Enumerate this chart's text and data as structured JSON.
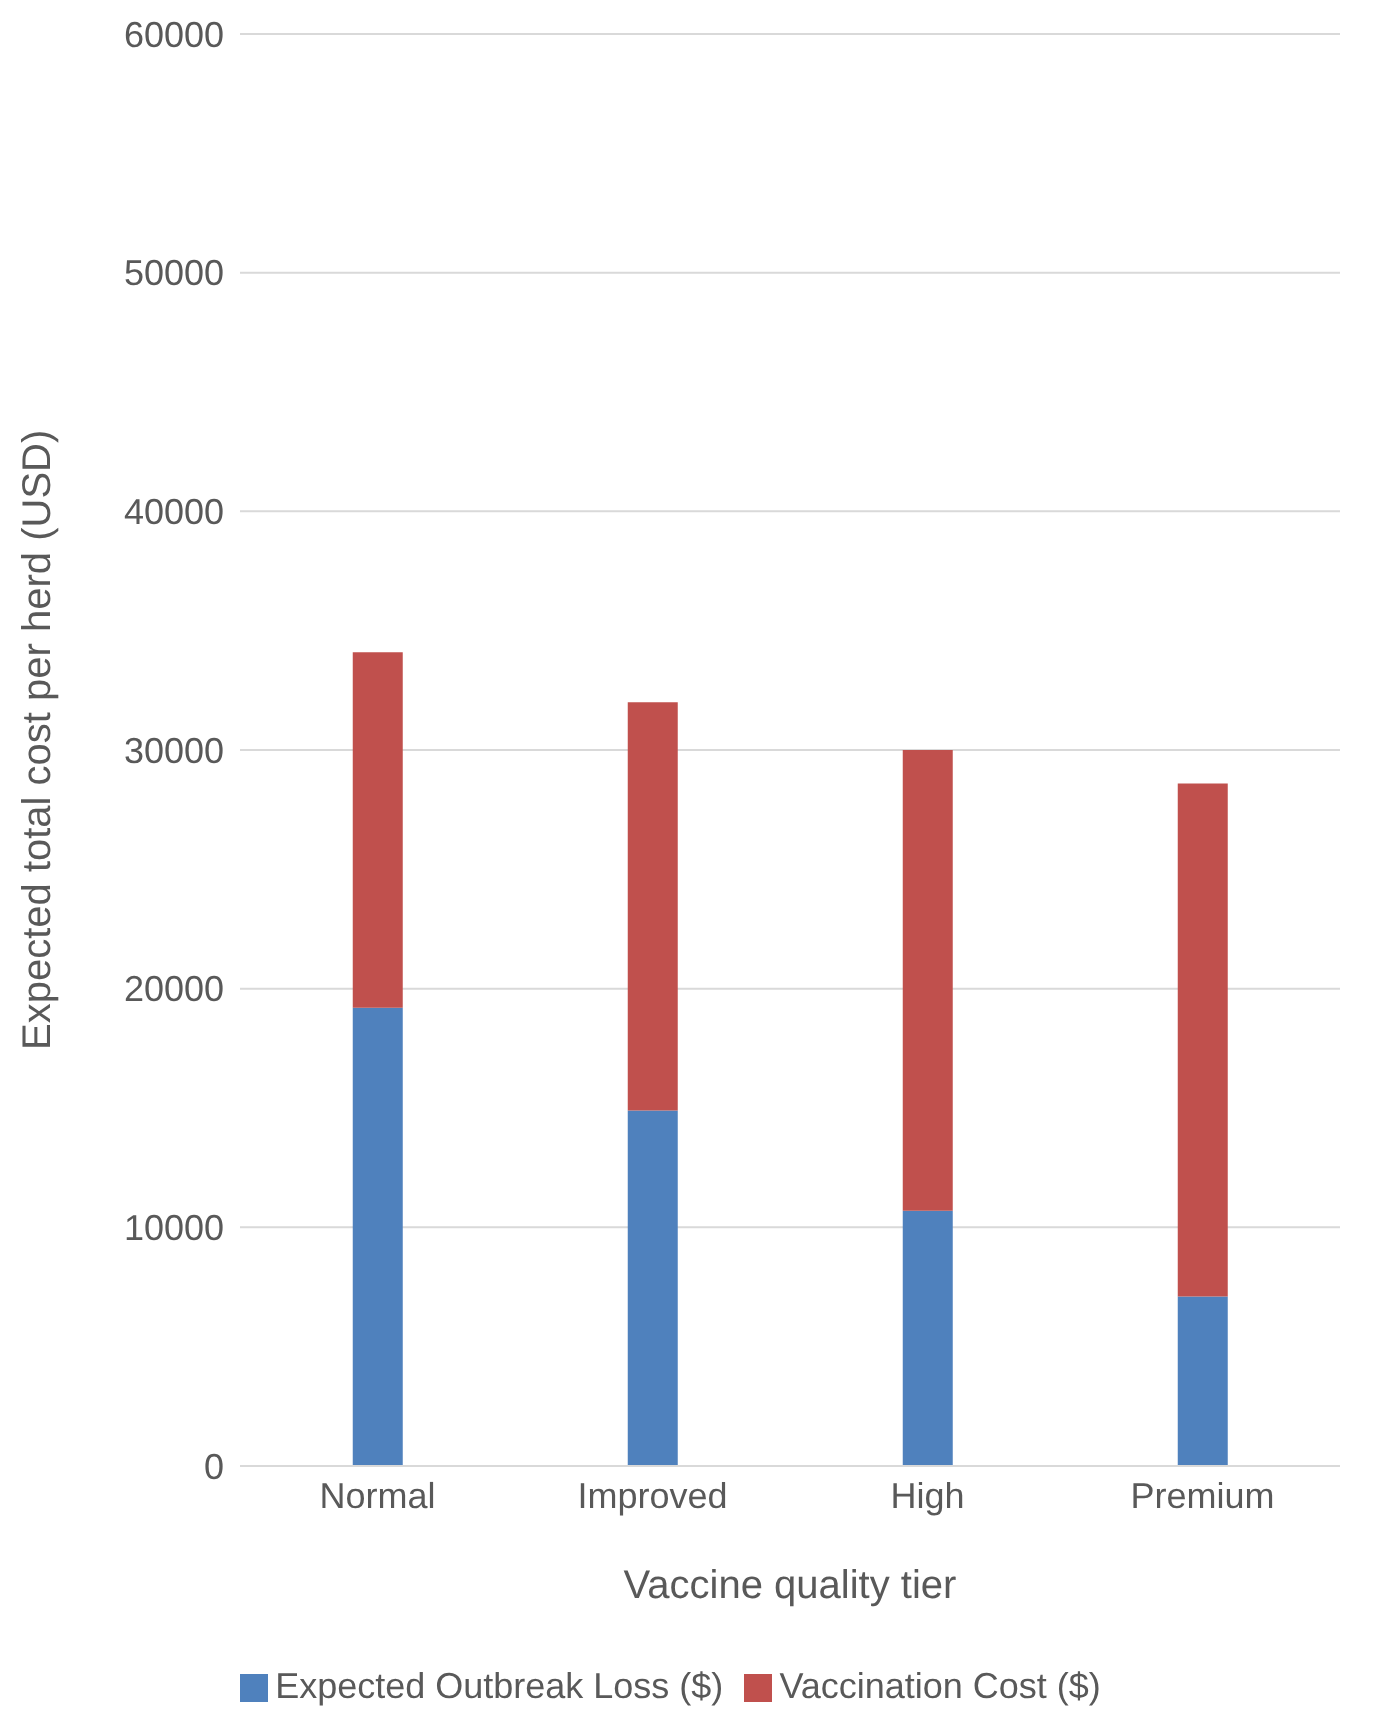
{
  "chart_data": {
    "type": "bar",
    "stacked": true,
    "xlabel": "Vaccine quality tier",
    "ylabel": "Expected total cost per herd (USD)",
    "categories": [
      "Normal",
      "Improved",
      "High",
      "Premium"
    ],
    "series": [
      {
        "name": "Expected Outbreak Loss ($)",
        "color": "#4f81bd",
        "values": [
          19200,
          14900,
          10700,
          7100
        ]
      },
      {
        "name": "Vaccination Cost ($)",
        "color": "#c0504d",
        "values": [
          14900,
          17100,
          19300,
          21500
        ]
      }
    ],
    "ylim": [
      0,
      60000
    ],
    "yticks": [
      0,
      10000,
      20000,
      30000,
      40000,
      50000,
      60000
    ],
    "grid": "y",
    "legend": "bottom"
  }
}
